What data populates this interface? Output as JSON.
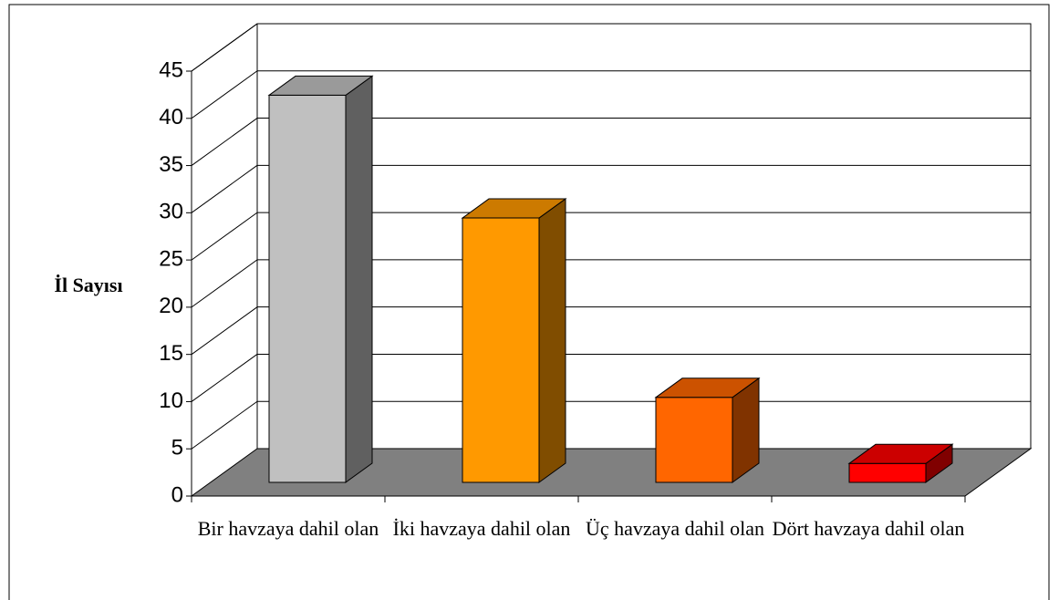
{
  "chart_data": {
    "type": "bar3d",
    "y_label": "İl Sayısı",
    "categories": [
      "Bir havzaya dahil olan",
      "İki havzaya dahil olan",
      "Üç havzaya dahil olan",
      "Dört havzaya dahil olan"
    ],
    "values": [
      41,
      28,
      9,
      2
    ],
    "colors": [
      "#c0c0c0",
      "#ff9900",
      "#ff6600",
      "#ff0000"
    ],
    "ylim": [
      0,
      45
    ],
    "yticks": [
      0,
      5,
      10,
      15,
      20,
      25,
      30,
      35,
      40,
      45
    ],
    "grid": true
  }
}
